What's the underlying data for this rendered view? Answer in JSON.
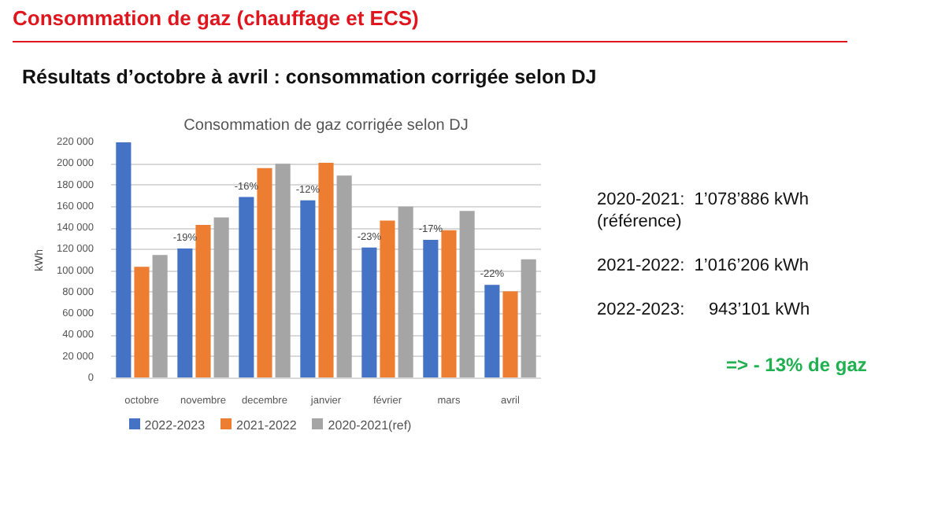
{
  "chart_data": [
    {
      "type": "other",
      "title": "Consommation de gaz (chauffage et ECS)",
      "subtitle": "Résultats d’octobre à avril : consommation corrigée selon DJ",
      "annotations": [
        "2020-2021:  1’078’886 kWh",
        "(référence)",
        "2021-2022:  1’016’206 kWh",
        "2022-2023:     943’101 kWh",
        "=> - 13% de gaz"
      ]
    },
    {
      "type": "bar",
      "title": "Consommation de gaz corrigée selon DJ",
      "ylabel": "kWh",
      "categories": [
        "octobre",
        "novembre",
        "decembre",
        "janvier",
        "février",
        "mars",
        "avril"
      ],
      "series": [
        {
          "name": "2022-2023",
          "color": "#4472c4",
          "values": [
            220000,
            121000,
            169000,
            166000,
            122000,
            129000,
            87000
          ]
        },
        {
          "name": "2021-2022",
          "color": "#ed7d31",
          "values": [
            104000,
            143000,
            196000,
            201000,
            147000,
            138000,
            81000
          ]
        },
        {
          "name": "2020-2021(ref)",
          "color": "#a5a5a5",
          "values": [
            115000,
            150000,
            200000,
            189000,
            160000,
            156000,
            111000
          ]
        }
      ],
      "ylim": [
        0,
        220000
      ],
      "yticks": [
        {
          "value": 0,
          "label": "0"
        },
        {
          "value": 20000,
          "label": "20 000"
        },
        {
          "value": 40000,
          "label": "40 000"
        },
        {
          "value": 60000,
          "label": "60 000"
        },
        {
          "value": 80000,
          "label": "80 000"
        },
        {
          "value": 100000,
          "label": "100 000"
        },
        {
          "value": 120000,
          "label": "120 000"
        },
        {
          "value": 140000,
          "label": "140 000"
        },
        {
          "value": 160000,
          "label": "160 000"
        },
        {
          "value": 180000,
          "label": "180 000"
        },
        {
          "value": 200000,
          "label": "200 000"
        },
        {
          "value": 220000,
          "label": "220 000"
        }
      ],
      "grid": "y",
      "legend": "bottom",
      "annotations": [
        {
          "text": "-19%",
          "x": "novembre",
          "y": 121000
        },
        {
          "text": "-16%",
          "x": "decembre",
          "y": 169000
        },
        {
          "text": "-12%",
          "x": "janvier",
          "y": 166000
        },
        {
          "text": "-23%",
          "x": "février",
          "y": 122000
        },
        {
          "text": "-17%",
          "x": "mars",
          "y": 129000
        },
        {
          "text": "-22%",
          "x": "avril",
          "y": 87000
        }
      ]
    }
  ]
}
